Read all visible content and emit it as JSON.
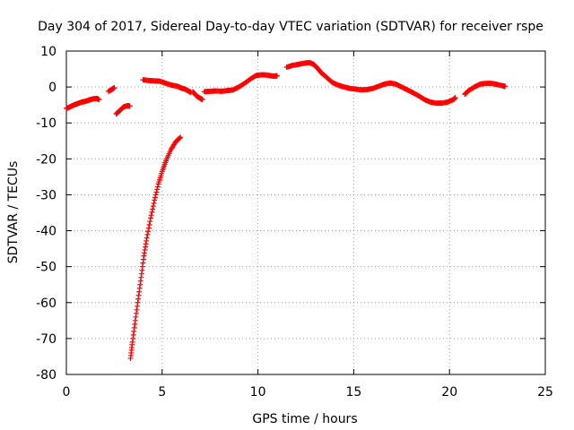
{
  "chart_data": {
    "type": "scatter",
    "title": "Day 304 of 2017, Sidereal Day-to-day VTEC variation (SDTVAR) for receiver rspe",
    "xlabel": "GPS time / hours",
    "ylabel": "SDTVAR / TECUs",
    "xlim": [
      0,
      25
    ],
    "ylim": [
      -80,
      10
    ],
    "xticks": [
      "0",
      "5",
      "10",
      "15",
      "20",
      "25"
    ],
    "yticks": [
      "10",
      "0",
      "-10",
      "-20",
      "-30",
      "-40",
      "-50",
      "-60",
      "-70",
      "-80"
    ],
    "grid": true,
    "marker": "+",
    "color": "#ff0000",
    "series": [
      {
        "name": "SDTVAR",
        "segments": [
          [
            [
              0.0,
              -6
            ],
            [
              0.2,
              -5.5
            ],
            [
              0.4,
              -5
            ],
            [
              0.6,
              -4.6
            ],
            [
              0.8,
              -4.2
            ],
            [
              1.0,
              -4
            ],
            [
              1.2,
              -3.6
            ],
            [
              1.4,
              -3.3
            ],
            [
              1.6,
              -3.2
            ],
            [
              1.7,
              -3.5
            ]
          ],
          [
            [
              2.2,
              -1.2
            ],
            [
              2.4,
              -0.6
            ],
            [
              2.5,
              -0.2
            ]
          ],
          [
            [
              2.6,
              -7.5
            ],
            [
              2.8,
              -6.5
            ],
            [
              3.0,
              -5.5
            ],
            [
              3.2,
              -5.2
            ],
            [
              3.3,
              -5.3
            ]
          ],
          [
            [
              4.0,
              2
            ],
            [
              4.3,
              1.8
            ],
            [
              4.6,
              1.7
            ],
            [
              4.9,
              1.6
            ],
            [
              5.2,
              1.0
            ],
            [
              5.5,
              0.5
            ],
            [
              5.8,
              0.2
            ],
            [
              6.0,
              -0.3
            ],
            [
              6.2,
              -0.6
            ],
            [
              6.4,
              -1.2
            ],
            [
              6.5,
              -1.5
            ]
          ],
          [
            [
              6.6,
              -1.3
            ],
            [
              6.8,
              -2.5
            ],
            [
              7.0,
              -3.2
            ],
            [
              7.1,
              -3.5
            ]
          ],
          [
            [
              7.2,
              -1.3
            ],
            [
              7.5,
              -1.2
            ],
            [
              7.8,
              -1.1
            ],
            [
              8.1,
              -1.2
            ],
            [
              8.4,
              -1.0
            ],
            [
              8.7,
              -0.8
            ],
            [
              9.0,
              0.0
            ],
            [
              9.3,
              1.0
            ],
            [
              9.6,
              2.2
            ],
            [
              9.9,
              3.2
            ],
            [
              10.2,
              3.4
            ],
            [
              10.5,
              3.3
            ],
            [
              10.8,
              3.0
            ],
            [
              11.0,
              3.1
            ]
          ],
          [
            [
              11.5,
              5.5
            ],
            [
              11.8,
              6.0
            ],
            [
              12.1,
              6.3
            ],
            [
              12.4,
              6.6
            ],
            [
              12.7,
              6.8
            ],
            [
              12.9,
              6.3
            ],
            [
              13.1,
              5.3
            ],
            [
              13.3,
              4.0
            ],
            [
              13.6,
              2.6
            ],
            [
              13.9,
              1.2
            ],
            [
              14.2,
              0.5
            ],
            [
              14.5,
              0.0
            ],
            [
              14.8,
              -0.4
            ],
            [
              15.1,
              -0.6
            ],
            [
              15.4,
              -0.8
            ],
            [
              15.7,
              -0.7
            ],
            [
              16.0,
              -0.4
            ],
            [
              16.3,
              0.2
            ],
            [
              16.6,
              0.8
            ],
            [
              16.9,
              1.1
            ],
            [
              17.2,
              0.8
            ],
            [
              17.5,
              0.0
            ],
            [
              17.8,
              -0.8
            ],
            [
              18.1,
              -1.6
            ],
            [
              18.4,
              -2.5
            ],
            [
              18.7,
              -3.5
            ],
            [
              19.0,
              -4.2
            ],
            [
              19.3,
              -4.5
            ],
            [
              19.6,
              -4.5
            ],
            [
              19.9,
              -4.2
            ],
            [
              20.2,
              -3.5
            ],
            [
              20.3,
              -3.0
            ]
          ],
          [
            [
              20.8,
              -2.0
            ],
            [
              21.0,
              -1.0
            ],
            [
              21.3,
              0.0
            ],
            [
              21.6,
              0.8
            ],
            [
              21.9,
              1.0
            ],
            [
              22.2,
              1.0
            ],
            [
              22.5,
              0.7
            ],
            [
              22.8,
              0.3
            ],
            [
              22.9,
              0.2
            ]
          ],
          [
            [
              3.35,
              -75.5
            ],
            [
              3.45,
              -71
            ],
            [
              3.6,
              -65
            ],
            [
              3.75,
              -59
            ],
            [
              3.9,
              -53
            ],
            [
              4.05,
              -47
            ],
            [
              4.2,
              -42
            ],
            [
              4.4,
              -36.5
            ],
            [
              4.6,
              -31.5
            ],
            [
              4.8,
              -27
            ],
            [
              5.0,
              -23.5
            ],
            [
              5.2,
              -20.5
            ],
            [
              5.45,
              -17.5
            ],
            [
              5.7,
              -15.3
            ],
            [
              5.95,
              -14
            ]
          ]
        ]
      }
    ]
  }
}
